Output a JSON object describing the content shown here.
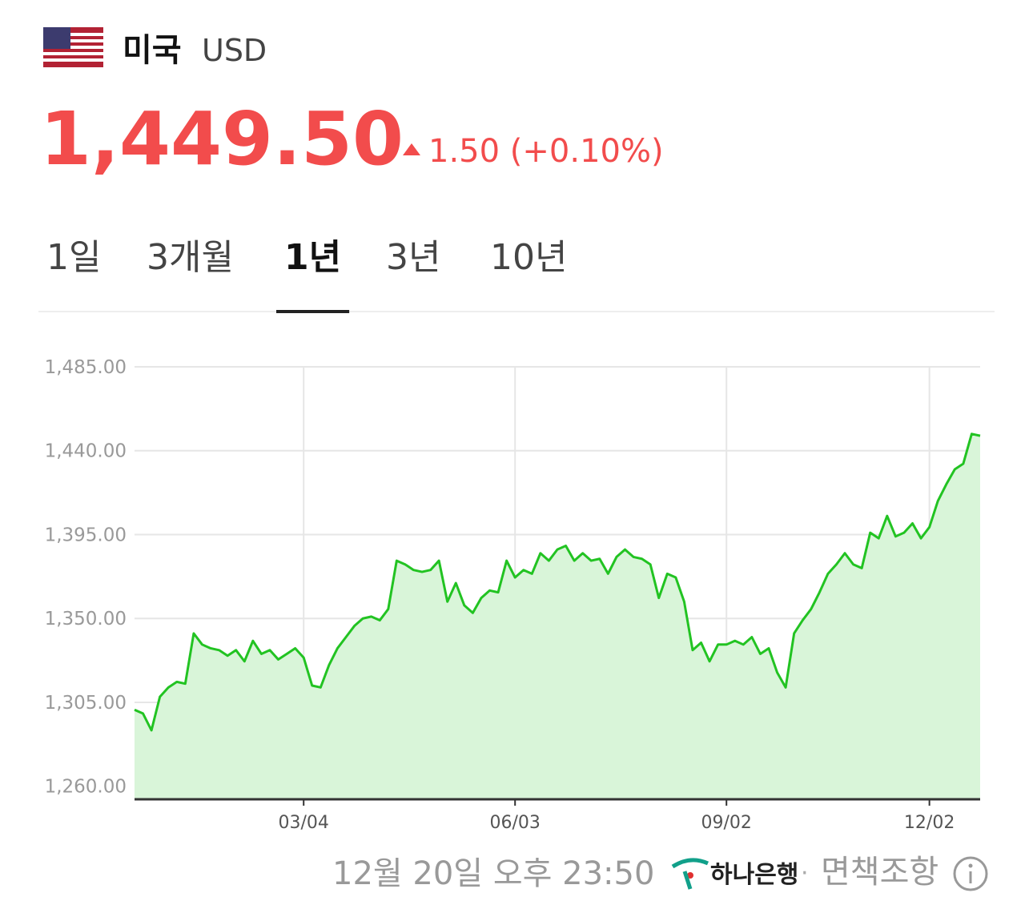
{
  "header": {
    "country": "미국",
    "currency": "USD"
  },
  "price": {
    "value": "1,449.50",
    "change": "1.50 (+0.10%)"
  },
  "tabs": [
    "1일",
    "3개월",
    "1년",
    "3년",
    "10년"
  ],
  "active_tab": 2,
  "chart_data": {
    "type": "area",
    "color": "#22c322",
    "fill": "#d9f5d9",
    "grid": true,
    "ylim": [
      1253,
      1485
    ],
    "yticks": [
      {
        "value": 1260,
        "label": "1,260.00"
      },
      {
        "value": 1305,
        "label": "1,305.00"
      },
      {
        "value": 1350,
        "label": "1,350.00"
      },
      {
        "value": 1395,
        "label": "1,395.00"
      },
      {
        "value": 1440,
        "label": "1,440.00"
      },
      {
        "value": 1485,
        "label": "1,485.00"
      }
    ],
    "categories": [
      null,
      null,
      null,
      null,
      null,
      null,
      null,
      null,
      null,
      null,
      null,
      null,
      null,
      null,
      null,
      null,
      null,
      null,
      null,
      null,
      "03/04",
      null,
      null,
      null,
      null,
      null,
      null,
      null,
      null,
      null,
      null,
      null,
      null,
      null,
      null,
      null,
      null,
      null,
      null,
      null,
      null,
      null,
      null,
      null,
      null,
      "06/03",
      null,
      null,
      null,
      null,
      null,
      null,
      null,
      null,
      null,
      null,
      null,
      null,
      null,
      null,
      null,
      null,
      null,
      null,
      null,
      null,
      null,
      null,
      null,
      null,
      "09/02",
      null,
      null,
      null,
      null,
      null,
      null,
      null,
      null,
      null,
      null,
      null,
      null,
      null,
      null,
      null,
      null,
      null,
      null,
      null,
      null,
      null,
      null,
      null,
      "12/02",
      null,
      null,
      null,
      null,
      null,
      null
    ],
    "values": [
      1301,
      1299,
      1290,
      1308,
      1313,
      1316,
      1315,
      1342,
      1336,
      1334,
      1333,
      1330,
      1333,
      1327,
      1338,
      1331,
      1333,
      1328,
      1331,
      1334,
      1329,
      1314,
      1313,
      1325,
      1334,
      1340,
      1346,
      1350,
      1351,
      1349,
      1355,
      1381,
      1379,
      1376,
      1375,
      1376,
      1381,
      1359,
      1369,
      1357,
      1353,
      1361,
      1365,
      1364,
      1381,
      1372,
      1376,
      1374,
      1385,
      1381,
      1387,
      1389,
      1381,
      1385,
      1381,
      1382,
      1374,
      1383,
      1387,
      1383,
      1382,
      1379,
      1361,
      1374,
      1372,
      1359,
      1333,
      1337,
      1327,
      1336,
      1336,
      1338,
      1336,
      1340,
      1331,
      1334,
      1321,
      1313,
      1342,
      1349,
      1355,
      1364,
      1374,
      1379,
      1385,
      1379,
      1377,
      1396,
      1393,
      1405,
      1394,
      1396,
      1401,
      1393,
      1399,
      1413,
      1422,
      1430,
      1433,
      1449,
      1448
    ]
  },
  "footer": {
    "timestamp": "12월 20일 오후 23:50",
    "bank": "하나은행",
    "separator": "·",
    "disclaimer": "면책조항"
  }
}
